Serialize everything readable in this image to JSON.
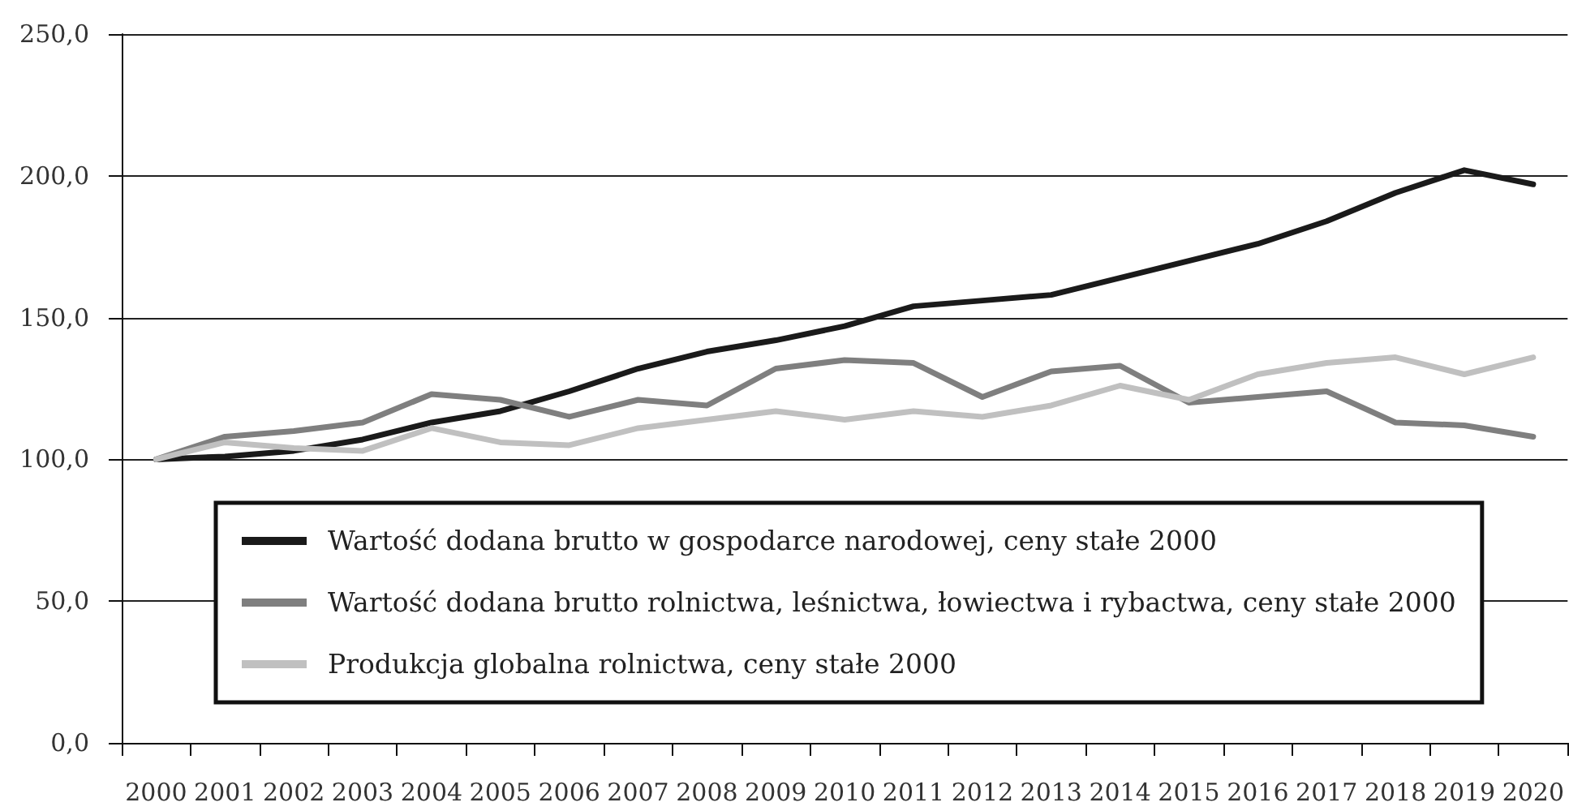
{
  "chart_data": {
    "type": "line",
    "categories": [
      "2000",
      "2001",
      "2002",
      "2003",
      "2004",
      "2005",
      "2006",
      "2007",
      "2008",
      "2009",
      "2010",
      "2011",
      "2012",
      "2013",
      "2014",
      "2015",
      "2016",
      "2017",
      "2018",
      "2019",
      "2020"
    ],
    "series": [
      {
        "name": "Wartość dodana brutto w gospodarce narodowej, ceny stałe 2000",
        "color": "#1a1a1a",
        "values": [
          100,
          101,
          103,
          107,
          113,
          117,
          124,
          132,
          138,
          142,
          147,
          154,
          156,
          158,
          164,
          170,
          176,
          184,
          194,
          202,
          197
        ]
      },
      {
        "name": "Wartość dodana brutto rolnictwa, leśnictwa, łowiectwa i rybactwa, ceny stałe 2000",
        "color": "#7f7f7f",
        "values": [
          100,
          108,
          110,
          113,
          123,
          121,
          115,
          121,
          119,
          132,
          135,
          134,
          122,
          131,
          133,
          120,
          122,
          124,
          113,
          112,
          108
        ]
      },
      {
        "name": "Produkcja globalna rolnictwa, ceny stałe 2000",
        "color": "#c0c0c0",
        "values": [
          100,
          106,
          104,
          103,
          111,
          106,
          105,
          111,
          114,
          117,
          114,
          117,
          115,
          119,
          126,
          121,
          130,
          134,
          136,
          130,
          136
        ]
      }
    ],
    "ylim": [
      0,
      250
    ],
    "yticks": [
      {
        "value": 0,
        "label": "0,0"
      },
      {
        "value": 50,
        "label": "50,0"
      },
      {
        "value": 100,
        "label": "100,0"
      },
      {
        "value": 150,
        "label": "150,0"
      },
      {
        "value": 200,
        "label": "200,0"
      },
      {
        "value": 250,
        "label": "250,0"
      }
    ],
    "grid": "y",
    "legend": "bottom",
    "line_style": "solid"
  }
}
